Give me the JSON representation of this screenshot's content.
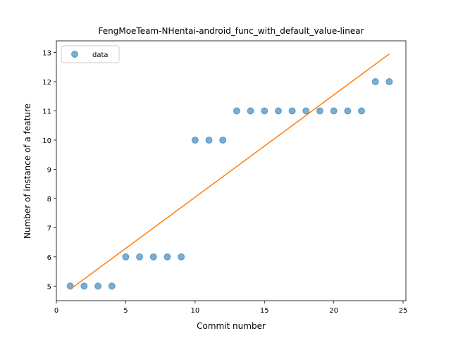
{
  "chart_data": {
    "type": "scatter",
    "title": "FengMoeTeam-NHentai-android_func_with_default_value-linear",
    "xlabel": "Commit number",
    "ylabel": "Number of instance of a feature",
    "xlim": [
      0,
      25.2
    ],
    "ylim": [
      4.5,
      13.4
    ],
    "xticks": [
      0,
      5,
      10,
      15,
      20,
      25
    ],
    "yticks": [
      5,
      6,
      7,
      8,
      9,
      10,
      11,
      12,
      13
    ],
    "grid": false,
    "legend": {
      "position": "top-left",
      "entries": [
        "data"
      ]
    },
    "series": [
      {
        "name": "data",
        "kind": "points",
        "color": "#1f77b4",
        "x": [
          1,
          2,
          3,
          4,
          5,
          6,
          7,
          8,
          9,
          10,
          11,
          12,
          13,
          14,
          15,
          16,
          17,
          18,
          19,
          20,
          21,
          22,
          23,
          24
        ],
        "y": [
          5,
          5,
          5,
          5,
          6,
          6,
          6,
          6,
          6,
          10,
          10,
          10,
          11,
          11,
          11,
          11,
          11,
          11,
          11,
          11,
          11,
          11,
          12,
          12
        ]
      },
      {
        "kind": "line",
        "color": "#ff7f0e",
        "x": [
          1,
          24
        ],
        "y": [
          4.89,
          12.95
        ]
      }
    ]
  }
}
